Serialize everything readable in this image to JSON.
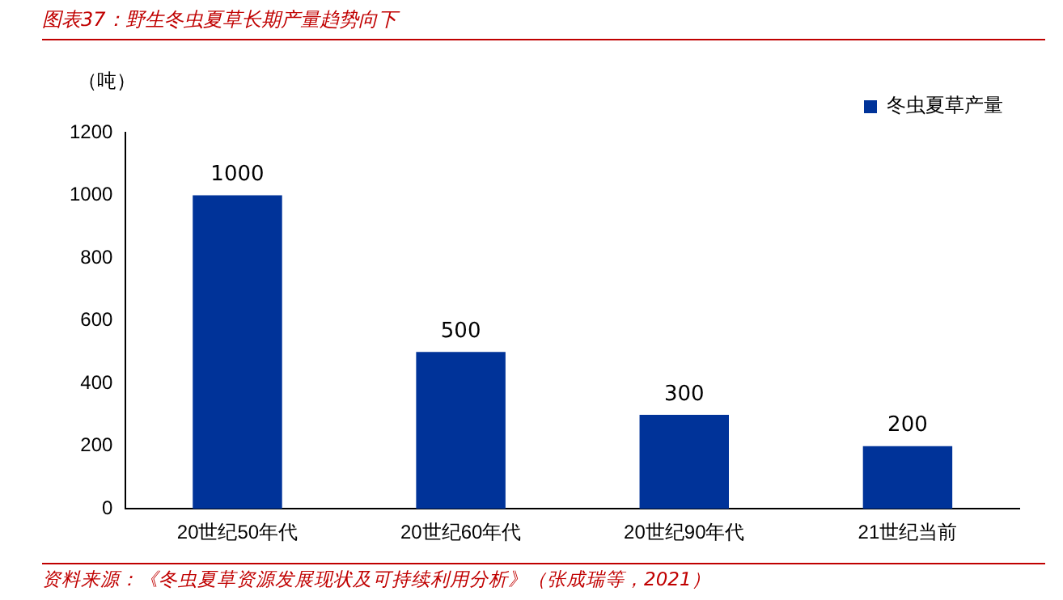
{
  "chart_data": {
    "type": "bar",
    "title": "图表37：野生冬虫夏草长期产量趋势向下",
    "ylabel": "（吨）",
    "categories": [
      "20世纪50年代",
      "20世纪60年代",
      "20世纪90年代",
      "21世纪当前"
    ],
    "series": [
      {
        "name": "冬虫夏草产量",
        "color": "#003399",
        "values": [
          1000,
          500,
          300,
          200
        ]
      }
    ],
    "ylim": [
      0,
      1200
    ],
    "yticks": [
      0,
      200,
      400,
      600,
      800,
      1000,
      1200
    ],
    "grid": false,
    "legend": "top right",
    "data_labels": true,
    "annotations": [
      "资料来源：《冬虫夏草资源发展现状及可持续利用分析》（张成瑞等，2021）"
    ]
  }
}
